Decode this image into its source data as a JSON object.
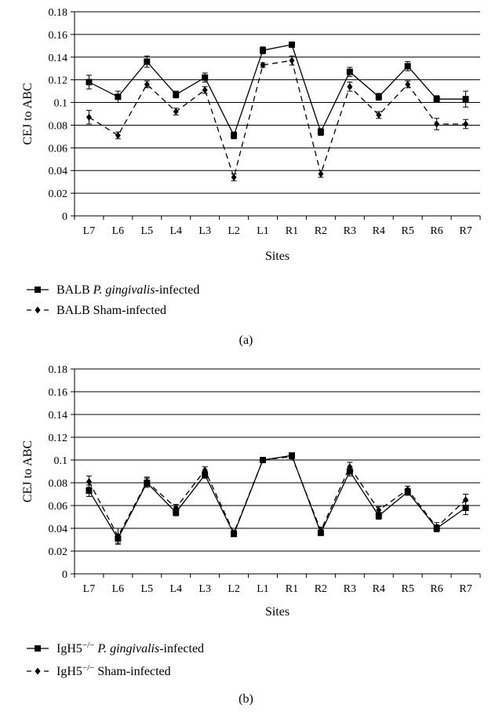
{
  "chart_data": [
    {
      "type": "line",
      "panel_label": "(a)",
      "xlabel": "Sites",
      "ylabel": "CEJ to ABC",
      "ylim": [
        0,
        0.18
      ],
      "yticks": [
        "0",
        "0.02",
        "0.04",
        "0.06",
        "0.08",
        "0.1",
        "0.12",
        "0.14",
        "0.16",
        "0.18"
      ],
      "grid": true,
      "legend_position": "below",
      "categories": [
        "L7",
        "L6",
        "L5",
        "L4",
        "L3",
        "L2",
        "L1",
        "R1",
        "R2",
        "R3",
        "R4",
        "R5",
        "R6",
        "R7"
      ],
      "series": [
        {
          "legend_prefix": "BALB ",
          "legend_italic": "P. gingivalis",
          "legend_suffix": "-infected",
          "line_style": "solid",
          "marker": "square",
          "values": [
            0.118,
            0.105,
            0.136,
            0.107,
            0.122,
            0.071,
            0.146,
            0.151,
            0.074,
            0.127,
            0.105,
            0.132,
            0.103,
            0.103
          ],
          "errors": [
            0.006,
            0.005,
            0.005,
            0.003,
            0.004,
            0.003,
            0.003,
            0.002,
            0.003,
            0.004,
            0.003,
            0.004,
            0.003,
            0.007
          ]
        },
        {
          "legend_prefix": "BALB Sham-infected",
          "legend_italic": "",
          "legend_suffix": "",
          "line_style": "dashed",
          "marker": "diamond",
          "values": [
            0.087,
            0.071,
            0.116,
            0.092,
            0.111,
            0.034,
            0.133,
            0.137,
            0.037,
            0.114,
            0.089,
            0.116,
            0.081,
            0.081
          ],
          "errors": [
            0.006,
            0.003,
            0.003,
            0.003,
            0.003,
            0.003,
            0.002,
            0.004,
            0.003,
            0.004,
            0.003,
            0.003,
            0.005,
            0.004
          ]
        }
      ]
    },
    {
      "type": "line",
      "panel_label": "(b)",
      "xlabel": "Sites",
      "ylabel": "CEJ to ABC",
      "ylim": [
        0,
        0.18
      ],
      "yticks": [
        "0",
        "0.02",
        "0.04",
        "0.06",
        "0.08",
        "0.1",
        "0.12",
        "0.14",
        "0.16",
        "0.18"
      ],
      "grid": true,
      "legend_position": "below",
      "categories": [
        "L7",
        "L6",
        "L5",
        "L4",
        "L3",
        "L2",
        "L1",
        "R1",
        "R2",
        "R3",
        "R4",
        "R5",
        "R6",
        "R7"
      ],
      "series": [
        {
          "legend_prefix": "IgH5",
          "legend_sup": "−/−",
          "legend_italic": " P. gingivalis",
          "legend_suffix": "-infected",
          "line_style": "solid",
          "marker": "square",
          "values": [
            0.073,
            0.031,
            0.08,
            0.054,
            0.087,
            0.035,
            0.1,
            0.104,
            0.036,
            0.09,
            0.051,
            0.072,
            0.04,
            0.058
          ],
          "errors": [
            0.005,
            0.004,
            0.004,
            0.003,
            0.003,
            0.002,
            0.002,
            0.002,
            0.002,
            0.004,
            0.003,
            0.003,
            0.003,
            0.006
          ]
        },
        {
          "legend_prefix": "IgH5",
          "legend_sup": "−/−",
          "legend_italic": "",
          "legend_suffix": " Sham-infected",
          "line_style": "dashed",
          "marker": "diamond",
          "values": [
            0.081,
            0.033,
            0.081,
            0.058,
            0.091,
            0.036,
            0.1,
            0.103,
            0.038,
            0.094,
            0.056,
            0.074,
            0.041,
            0.065
          ],
          "errors": [
            0.005,
            0.007,
            0.004,
            0.003,
            0.003,
            0.002,
            0.002,
            0.002,
            0.003,
            0.004,
            0.003,
            0.003,
            0.004,
            0.005
          ]
        }
      ]
    }
  ]
}
